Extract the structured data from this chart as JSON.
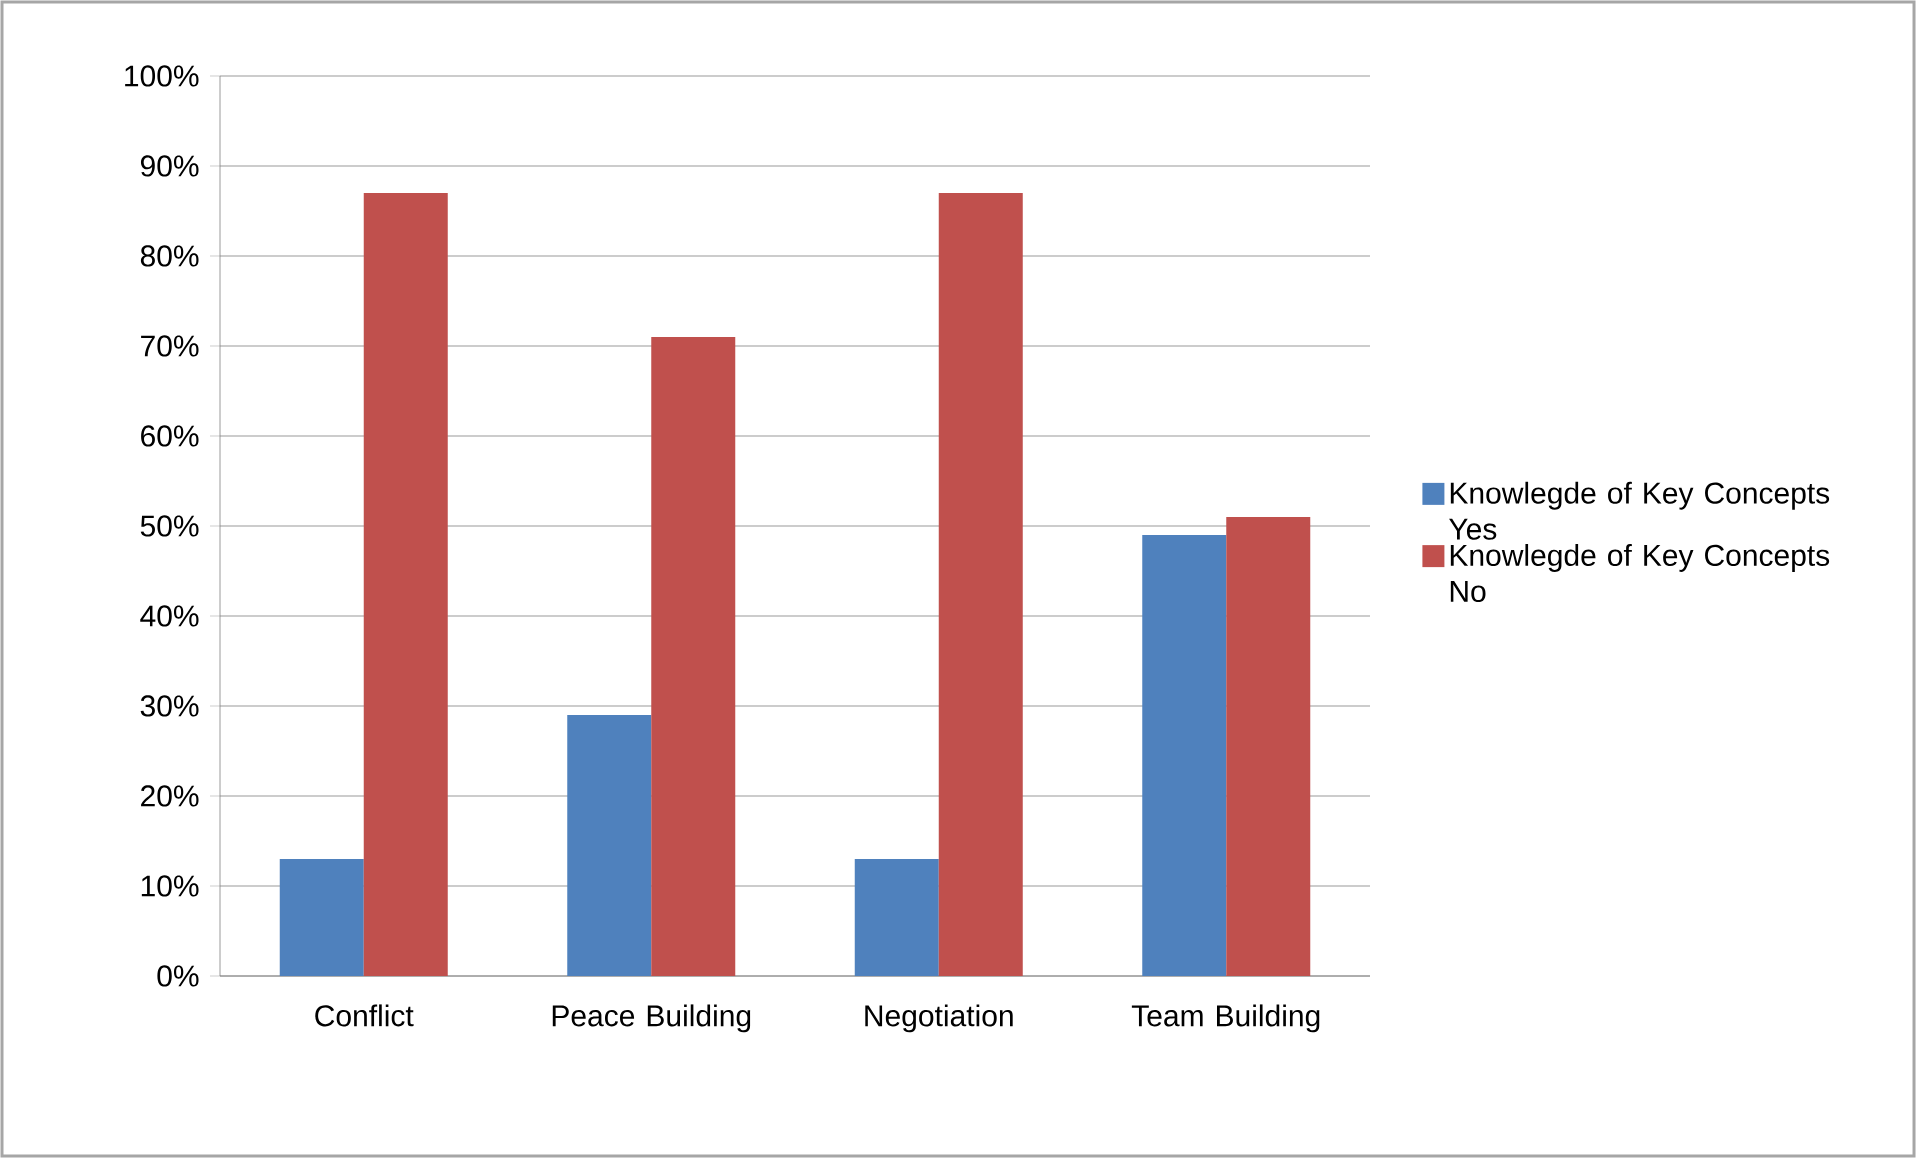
{
  "chart_data": {
    "type": "bar",
    "categories": [
      "Conflict",
      "Peace Building",
      "Negotiation",
      "Team Building"
    ],
    "series": [
      {
        "name": "Knowlegde of Key Concepts Yes",
        "color": "#4f81bd",
        "values": [
          13,
          29,
          13,
          49
        ]
      },
      {
        "name": "Knowlegde of Key Concepts No",
        "color": "#c0504d",
        "values": [
          87,
          71,
          87,
          51
        ]
      }
    ],
    "ylim": [
      0,
      100
    ],
    "yticks": [
      {
        "value": 0,
        "label": "0%"
      },
      {
        "value": 10,
        "label": "10%"
      },
      {
        "value": 20,
        "label": "20%"
      },
      {
        "value": 30,
        "label": "30%"
      },
      {
        "value": 40,
        "label": "40%"
      },
      {
        "value": 50,
        "label": "50%"
      },
      {
        "value": 60,
        "label": "60%"
      },
      {
        "value": 70,
        "label": "70%"
      },
      {
        "value": 80,
        "label": "80%"
      },
      {
        "value": 90,
        "label": "90%"
      },
      {
        "value": 100,
        "label": "100%"
      }
    ],
    "grid": "y",
    "legend": "right"
  }
}
